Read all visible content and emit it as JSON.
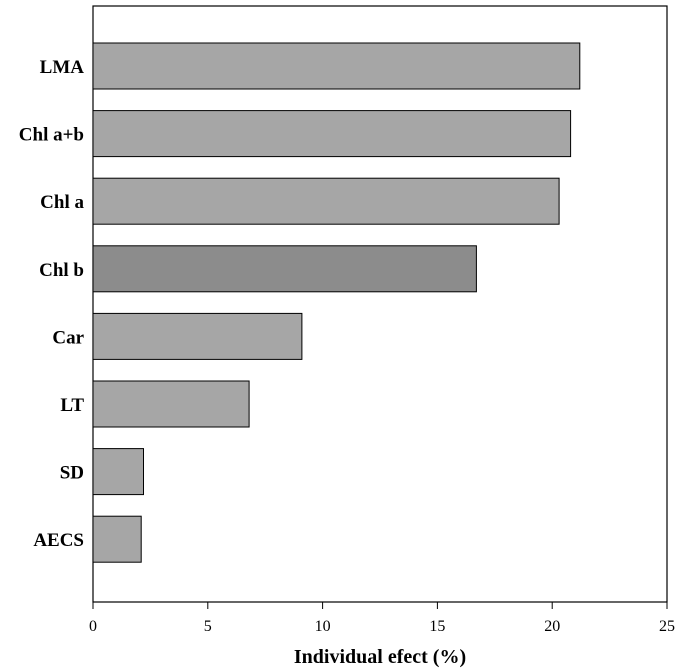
{
  "chart_data": {
    "type": "bar",
    "orientation": "horizontal",
    "categories": [
      "LMA",
      "Chl a+b",
      "Chl a",
      "Chl b",
      "Car",
      "LT",
      "SD",
      "AECS"
    ],
    "values": [
      21.2,
      20.8,
      20.3,
      16.7,
      9.1,
      6.8,
      2.2,
      2.1
    ],
    "xlabel": "Individual efect (%)",
    "ylabel": "",
    "xlim": [
      0,
      25
    ],
    "xticks": [
      "0",
      "5",
      "10",
      "15",
      "20",
      "25"
    ],
    "grid": false,
    "legend": "none",
    "colors": {
      "bar": "#a6a6a6",
      "bar_highlight": "#8c8c8c",
      "highlight_category": "Chl b",
      "stroke": "#000000"
    }
  }
}
